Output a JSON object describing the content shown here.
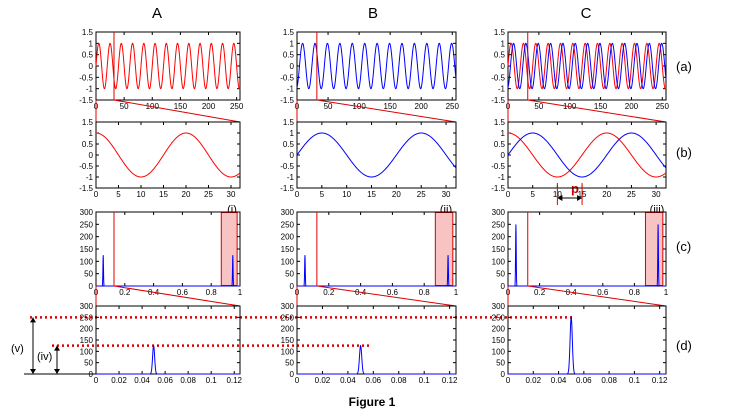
{
  "figure": {
    "caption": "Figure 1",
    "column_labels": [
      "A",
      "B",
      "C"
    ],
    "row_labels": [
      "(a)",
      "(b)",
      "(c)",
      "(d)"
    ],
    "spectrum_markers": [
      "(i)",
      "(ii)",
      "(iii)"
    ],
    "amplitude_markers": [
      "(v)",
      "(iv)"
    ],
    "phase_label": "p",
    "colors": {
      "signal_1": "#ff0000",
      "signal_2": "#0000ff",
      "axes": "#000000",
      "guide": "#dd0000",
      "highlight_fill": "#f7c3c3"
    }
  },
  "chart_data": [
    {
      "id": "row-a",
      "type": "line",
      "xlim": [
        0,
        256
      ],
      "ylim": [
        -1.5,
        1.5
      ],
      "xticks": [
        0,
        50,
        100,
        150,
        200,
        250
      ],
      "yticks": [
        -1.5,
        -1,
        -0.5,
        0,
        0.5,
        1,
        1.5
      ],
      "columns": {
        "A": {
          "series": [
            {
              "color": "red",
              "function": "sin",
              "period": 20,
              "phase": 0
            }
          ]
        },
        "B": {
          "series": [
            {
              "color": "blue",
              "function": "sin",
              "period": 20,
              "phase": 4
            }
          ]
        },
        "C": {
          "series": [
            {
              "color": "red",
              "function": "sin",
              "period": 20,
              "phase": 0
            },
            {
              "color": "blue",
              "function": "sin",
              "period": 20,
              "phase": 4
            }
          ]
        }
      },
      "zoom_window": [
        0,
        32
      ]
    },
    {
      "id": "row-b",
      "type": "line",
      "xlim": [
        0,
        32
      ],
      "ylim": [
        -1.5,
        1.5
      ],
      "xticks": [
        0,
        5,
        10,
        15,
        20,
        25,
        30
      ],
      "yticks": [
        -1.5,
        -1,
        -0.5,
        0,
        0.5,
        1,
        1.5
      ],
      "columns": {
        "A": {
          "series": [
            {
              "color": "red",
              "function": "cos",
              "period": 20,
              "phase": 0
            }
          ]
        },
        "B": {
          "series": [
            {
              "color": "blue",
              "function": "cos",
              "period": 20,
              "phase": 5
            }
          ]
        },
        "C": {
          "series": [
            {
              "color": "red",
              "function": "cos",
              "period": 20,
              "phase": 0
            },
            {
              "color": "blue",
              "function": "cos",
              "period": 20,
              "phase": 5
            }
          ]
        }
      },
      "phase_shift_annotation": {
        "column": "C",
        "from": 10,
        "to": 15
      }
    },
    {
      "id": "row-c",
      "type": "line",
      "xlim": [
        0,
        1
      ],
      "ylim": [
        0,
        300
      ],
      "xticks": [
        0,
        0.2,
        0.4,
        0.6,
        0.8,
        1
      ],
      "yticks": [
        0,
        50,
        100,
        150,
        200,
        250,
        300
      ],
      "columns": {
        "A": {
          "peaks": [
            {
              "x": 0.05,
              "y": 125
            },
            {
              "x": 0.95,
              "y": 125
            }
          ]
        },
        "B": {
          "peaks": [
            {
              "x": 0.05,
              "y": 125
            },
            {
              "x": 0.95,
              "y": 125
            }
          ]
        },
        "C": {
          "peaks": [
            {
              "x": 0.05,
              "y": 250
            },
            {
              "x": 0.95,
              "y": 250
            }
          ]
        }
      },
      "zoom_window": [
        0,
        0.125
      ],
      "highlight_region": [
        0.87,
        0.98
      ]
    },
    {
      "id": "row-d",
      "type": "line",
      "xlim": [
        0,
        0.125
      ],
      "ylim": [
        0,
        300
      ],
      "xticks": [
        0,
        0.02,
        0.04,
        0.06,
        0.08,
        0.1,
        0.12
      ],
      "yticks": [
        0,
        50,
        100,
        150,
        200,
        250,
        300
      ],
      "columns": {
        "A": {
          "peaks": [
            {
              "x": 0.05,
              "y": 125
            }
          ]
        },
        "B": {
          "peaks": [
            {
              "x": 0.05,
              "y": 125
            }
          ]
        },
        "C": {
          "peaks": [
            {
              "x": 0.05,
              "y": 250
            }
          ]
        }
      }
    }
  ]
}
